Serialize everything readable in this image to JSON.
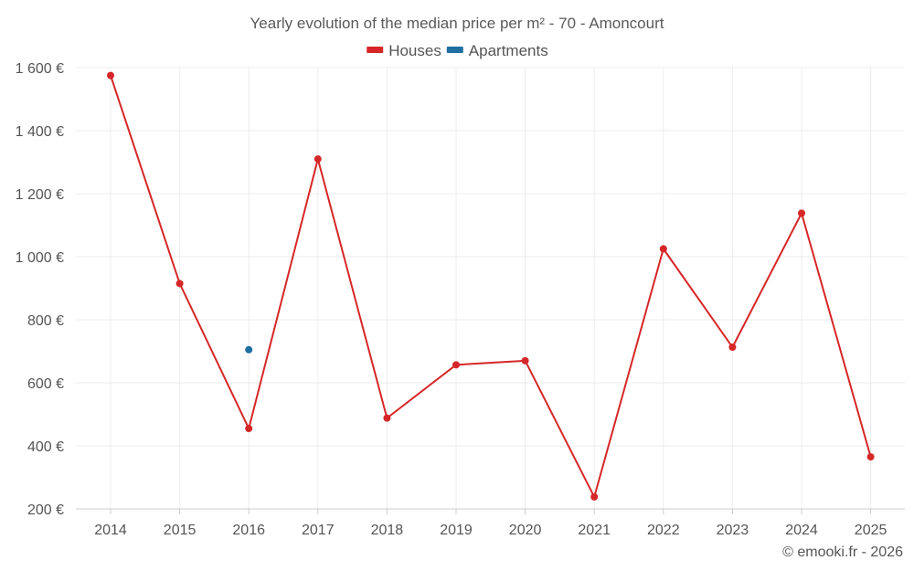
{
  "chart_data": {
    "type": "line",
    "title": "Yearly evolution of the median price per m² - 70 - Amoncourt",
    "categories": [
      "2014",
      "2015",
      "2016",
      "2017",
      "2018",
      "2019",
      "2020",
      "2021",
      "2022",
      "2023",
      "2024",
      "2025"
    ],
    "series": [
      {
        "name": "Houses",
        "color": "#d62728",
        "values": [
          1575,
          915,
          455,
          1310,
          488,
          657,
          670,
          238,
          1025,
          713,
          1138,
          365
        ]
      },
      {
        "name": "Apartments",
        "color": "#1f6fa0",
        "values": [
          null,
          null,
          705,
          null,
          null,
          null,
          null,
          null,
          null,
          null,
          null,
          null
        ]
      }
    ],
    "ylim": [
      200,
      1600
    ],
    "yticks": [
      200,
      400,
      600,
      800,
      1000,
      1200,
      1400,
      1600
    ],
    "ytick_labels": [
      "200 €",
      "400 €",
      "600 €",
      "800 €",
      "1 000 €",
      "1 200 €",
      "1 400 €",
      "1 600 €"
    ],
    "xlabel": "",
    "ylabel": "",
    "grid": true,
    "legend_position": "top-center"
  },
  "credit": "© emooki.fr - 2026"
}
